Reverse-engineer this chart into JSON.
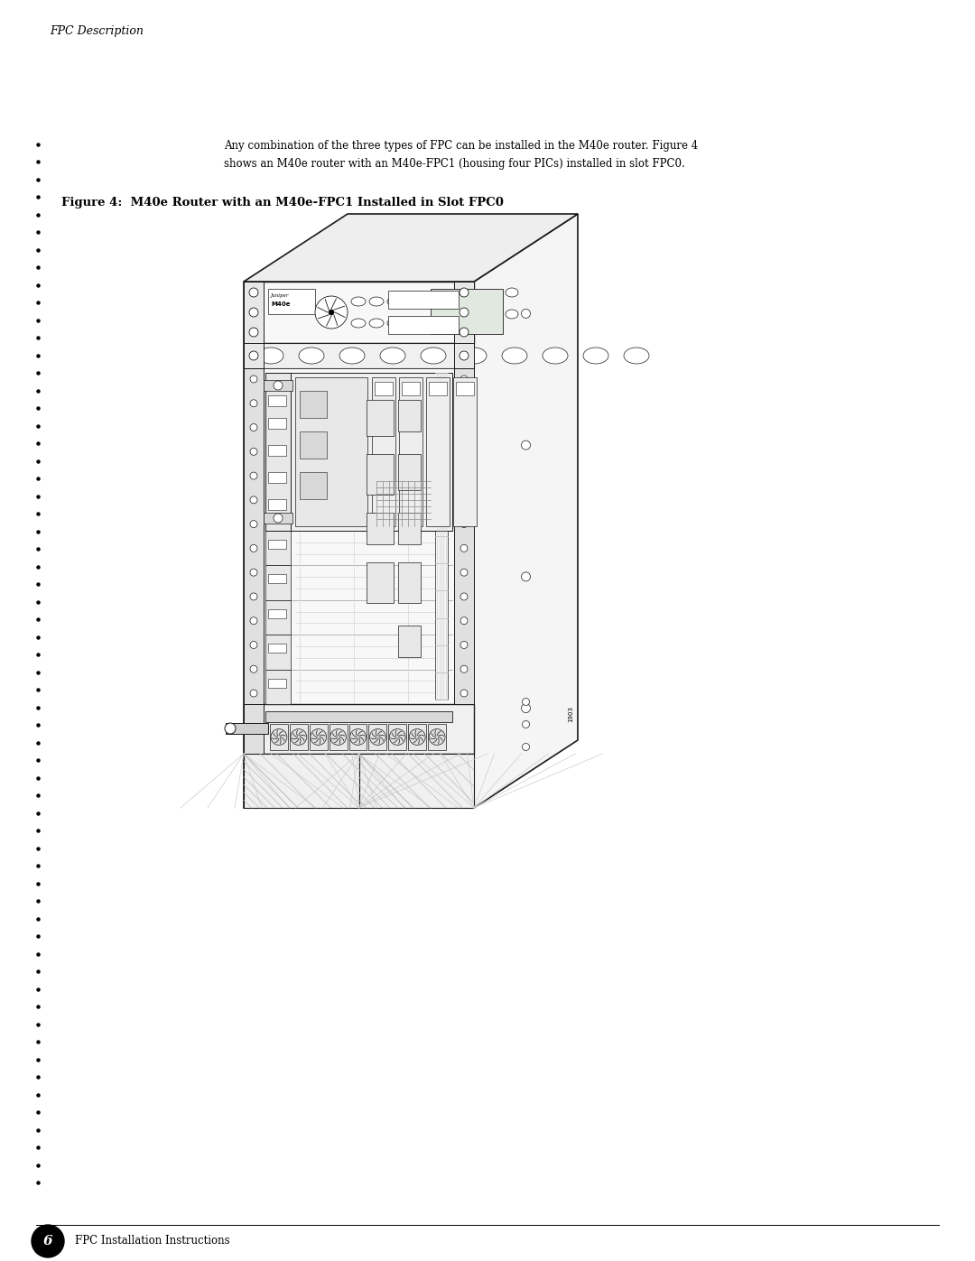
{
  "background_color": "#ffffff",
  "header_text": "FPC Description",
  "header_font_size": 9,
  "body_text_line1": "Any combination of the three types of FPC can be installed in the M40e router. Figure 4",
  "body_text_line2": "shows an M40e router with an M40e-FPC1 (housing four PICs) installed in slot FPC0.",
  "body_font_size": 8.5,
  "figure_caption": "Figure 4:  M40e Router with an M40e-FPC1 Installed in Slot FPC0",
  "caption_font_size": 9.5,
  "footer_number": "6",
  "footer_text": "FPC Installation Instructions",
  "footer_font_size": 8.5,
  "bullet_dot_size": 2.2,
  "outline_color": "#1a1a1a",
  "image_num_label": "1903"
}
